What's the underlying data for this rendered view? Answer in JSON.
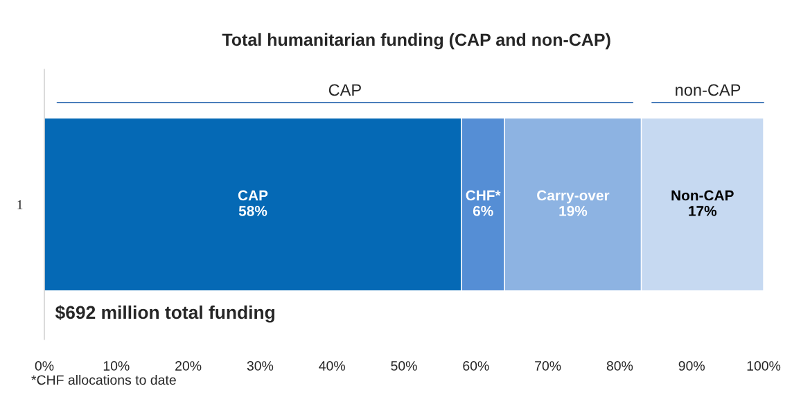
{
  "chart_data": {
    "type": "bar",
    "orientation": "horizontal",
    "stacked": true,
    "title": "Total humanitarian funding (CAP and non-CAP)",
    "categories": [
      "1"
    ],
    "series": [
      {
        "name": "CAP",
        "color": "#0569b5",
        "values": [
          58
        ],
        "value_labels": [
          "58%"
        ]
      },
      {
        "name": "CHF*",
        "color": "#558ed5",
        "values": [
          6
        ],
        "value_labels": [
          "6%"
        ]
      },
      {
        "name": "Carry-over",
        "color": "#8db3e2",
        "values": [
          19
        ],
        "value_labels": [
          "19%"
        ]
      },
      {
        "name": "Non-CAP",
        "color": "#c6d9f1",
        "values": [
          17
        ],
        "value_labels": [
          "17%"
        ]
      }
    ],
    "xlim": [
      0,
      100
    ],
    "xticks": [
      {
        "value": 0,
        "label": "0%"
      },
      {
        "value": 10,
        "label": "10%"
      },
      {
        "value": 20,
        "label": "20%"
      },
      {
        "value": 30,
        "label": "30%"
      },
      {
        "value": 40,
        "label": "40%"
      },
      {
        "value": 50,
        "label": "50%"
      },
      {
        "value": 60,
        "label": "60%"
      },
      {
        "value": 70,
        "label": "70%"
      },
      {
        "value": 80,
        "label": "80%"
      },
      {
        "value": 90,
        "label": "90%"
      },
      {
        "value": 100,
        "label": "100%"
      }
    ],
    "annotations": [
      "$692 million total funding",
      "*CHF allocations to date",
      "CAP",
      "non-CAP"
    ],
    "grid": false,
    "legend": false
  }
}
